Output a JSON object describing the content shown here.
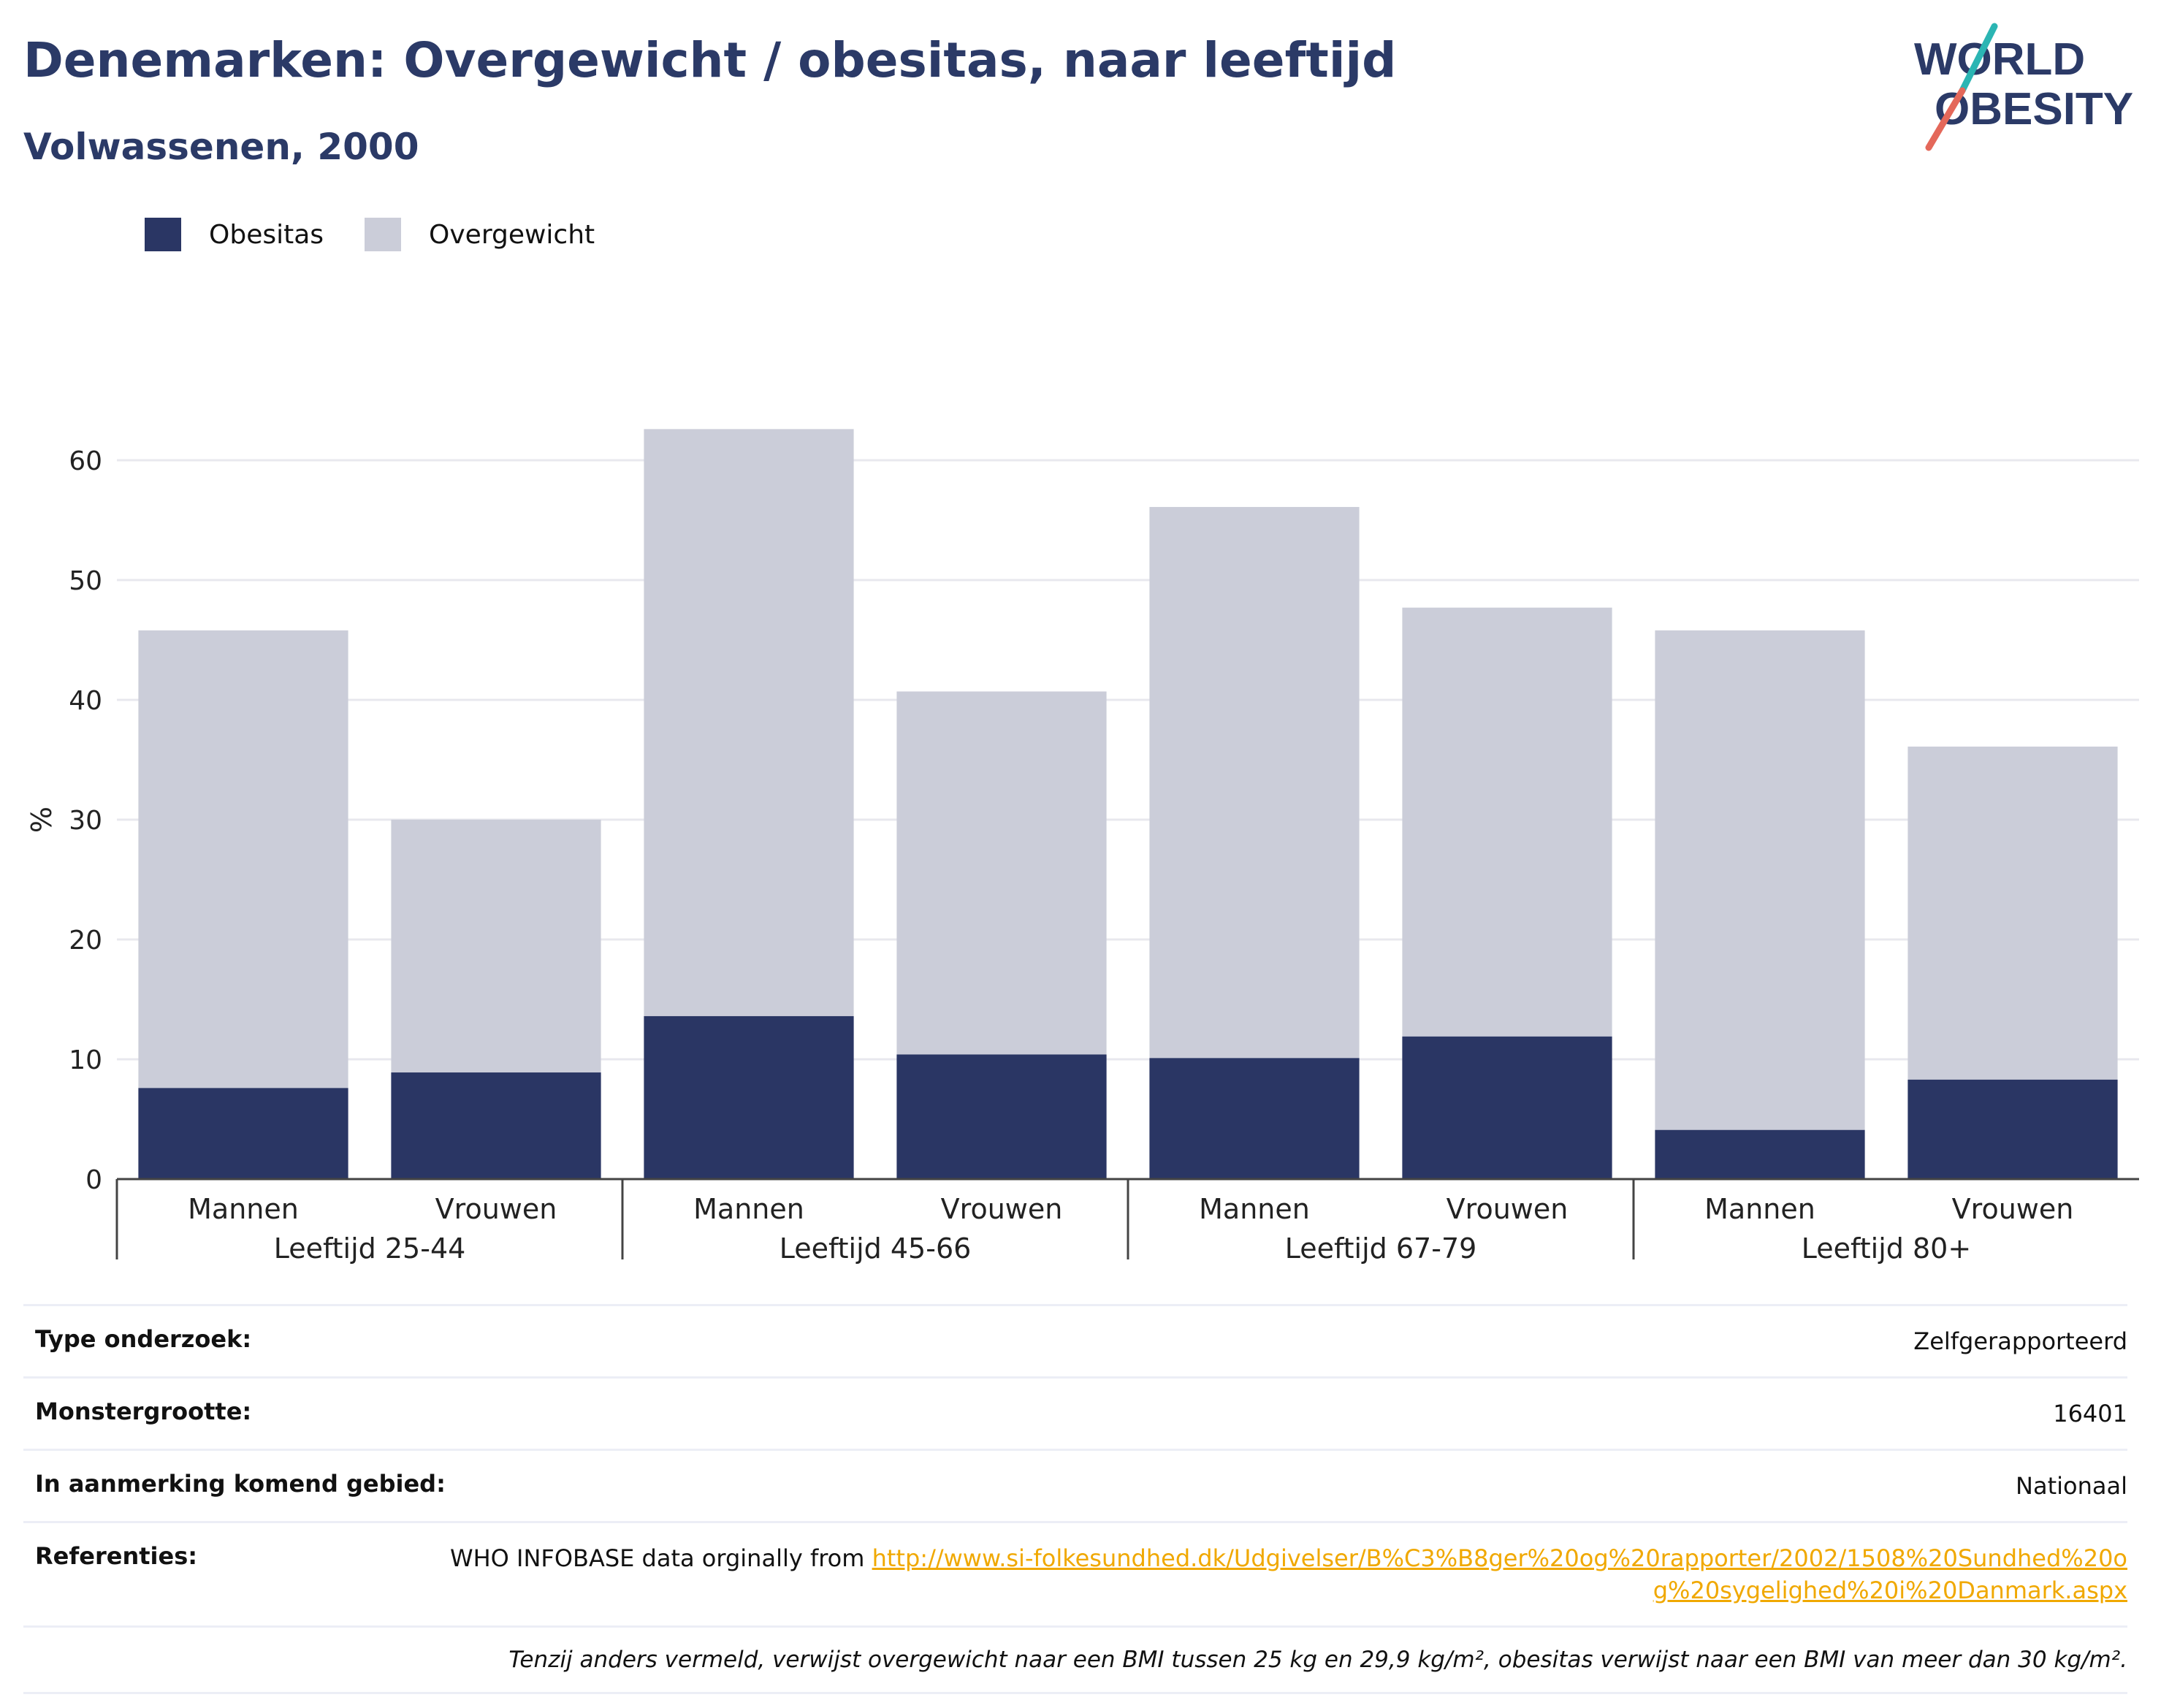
{
  "header": {
    "title": "Denemarken: Overgewicht / obesitas, naar leeftijd",
    "subtitle": "Volwassenen, 2000"
  },
  "logo": {
    "line1": "WORLD",
    "line2": "OBESITY"
  },
  "colors": {
    "obesitas": "#2a3664",
    "overgewicht": "#cbcdd9",
    "title": "#2b3a67",
    "link": "#f0a800"
  },
  "chart_data": {
    "type": "bar",
    "stacked": false,
    "overlay": true,
    "legend": [
      "Obesitas",
      "Overgewicht"
    ],
    "legend_position": "top-left",
    "ylabel": "%",
    "ylim": [
      0,
      65
    ],
    "yticks": [
      0,
      10,
      20,
      30,
      40,
      50,
      60
    ],
    "grid": true,
    "groups": [
      "Leeftijd 25-44",
      "Leeftijd 45-66",
      "Leeftijd 67-79",
      "Leeftijd 80+"
    ],
    "categories": [
      "Mannen",
      "Vrouwen",
      "Mannen",
      "Vrouwen",
      "Mannen",
      "Vrouwen",
      "Mannen",
      "Vrouwen"
    ],
    "series": [
      {
        "name": "Overgewicht",
        "values": [
          45.8,
          30.0,
          62.6,
          40.7,
          56.1,
          47.7,
          45.8,
          36.1
        ]
      },
      {
        "name": "Obesitas",
        "values": [
          7.6,
          8.9,
          13.6,
          10.4,
          10.1,
          11.9,
          4.1,
          8.3
        ]
      }
    ]
  },
  "meta": {
    "survey_type_label": "Type onderzoek:",
    "survey_type_value": "Zelfgerapporteerd",
    "sample_label": "Monstergrootte:",
    "sample_value": "16401",
    "area_label": "In aanmerking komend gebied:",
    "area_value": "Nationaal",
    "refs_label": "Referenties:",
    "refs_text": "WHO INFOBASE data orginally from ",
    "refs_link": "http://www.si-folkesundhed.dk/Udgivelser/B%C3%B8ger%20og%20rapporter/2002/1508%20Sundhed%20og%20sygelighed%20i%20Danmark.aspx",
    "note": "Tenzij anders vermeld, verwijst overgewicht naar een BMI tussen 25 kg en 29,9 kg/m², obesitas verwijst naar een BMI van meer dan 30 kg/m²."
  }
}
